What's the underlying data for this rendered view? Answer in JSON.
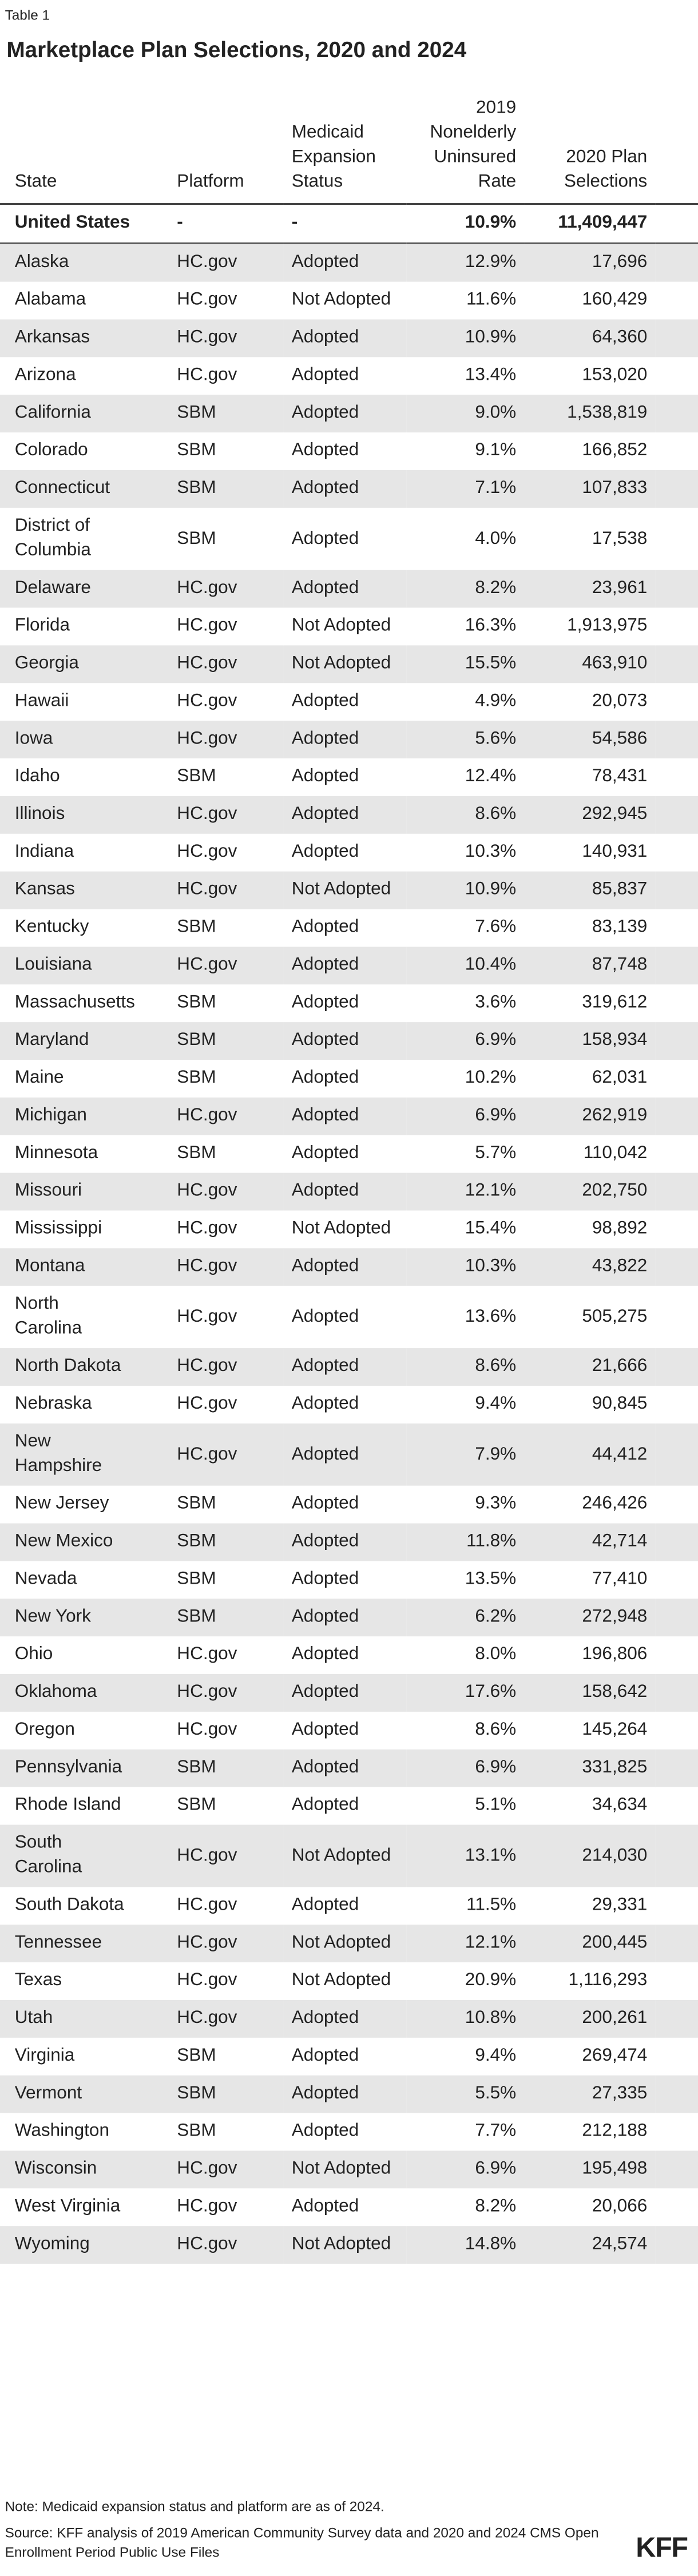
{
  "label": "Table 1",
  "title": "Marketplace Plan Selections, 2020 and 2024",
  "table": {
    "columns": [
      "State",
      "Platform",
      "Medicaid Expansion Status",
      "2019 Nonelderly Uninsured Rate",
      "2020 Plan Selections"
    ],
    "total": [
      "United States",
      "-",
      "-",
      "10.9%",
      "11,409,447"
    ],
    "rows": [
      [
        "Alaska",
        "HC.gov",
        "Adopted",
        "12.9%",
        "17,696"
      ],
      [
        "Alabama",
        "HC.gov",
        "Not Adopted",
        "11.6%",
        "160,429"
      ],
      [
        "Arkansas",
        "HC.gov",
        "Adopted",
        "10.9%",
        "64,360"
      ],
      [
        "Arizona",
        "HC.gov",
        "Adopted",
        "13.4%",
        "153,020"
      ],
      [
        "California",
        "SBM",
        "Adopted",
        "9.0%",
        "1,538,819"
      ],
      [
        "Colorado",
        "SBM",
        "Adopted",
        "9.1%",
        "166,852"
      ],
      [
        "Connecticut",
        "SBM",
        "Adopted",
        "7.1%",
        "107,833"
      ],
      [
        "District of Columbia",
        "SBM",
        "Adopted",
        "4.0%",
        "17,538"
      ],
      [
        "Delaware",
        "HC.gov",
        "Adopted",
        "8.2%",
        "23,961"
      ],
      [
        "Florida",
        "HC.gov",
        "Not Adopted",
        "16.3%",
        "1,913,975"
      ],
      [
        "Georgia",
        "HC.gov",
        "Not Adopted",
        "15.5%",
        "463,910"
      ],
      [
        "Hawaii",
        "HC.gov",
        "Adopted",
        "4.9%",
        "20,073"
      ],
      [
        "Iowa",
        "HC.gov",
        "Adopted",
        "5.6%",
        "54,586"
      ],
      [
        "Idaho",
        "SBM",
        "Adopted",
        "12.4%",
        "78,431"
      ],
      [
        "Illinois",
        "HC.gov",
        "Adopted",
        "8.6%",
        "292,945"
      ],
      [
        "Indiana",
        "HC.gov",
        "Adopted",
        "10.3%",
        "140,931"
      ],
      [
        "Kansas",
        "HC.gov",
        "Not Adopted",
        "10.9%",
        "85,837"
      ],
      [
        "Kentucky",
        "SBM",
        "Adopted",
        "7.6%",
        "83,139"
      ],
      [
        "Louisiana",
        "HC.gov",
        "Adopted",
        "10.4%",
        "87,748"
      ],
      [
        "Massachusetts",
        "SBM",
        "Adopted",
        "3.6%",
        "319,612"
      ],
      [
        "Maryland",
        "SBM",
        "Adopted",
        "6.9%",
        "158,934"
      ],
      [
        "Maine",
        "SBM",
        "Adopted",
        "10.2%",
        "62,031"
      ],
      [
        "Michigan",
        "HC.gov",
        "Adopted",
        "6.9%",
        "262,919"
      ],
      [
        "Minnesota",
        "SBM",
        "Adopted",
        "5.7%",
        "110,042"
      ],
      [
        "Missouri",
        "HC.gov",
        "Adopted",
        "12.1%",
        "202,750"
      ],
      [
        "Mississippi",
        "HC.gov",
        "Not Adopted",
        "15.4%",
        "98,892"
      ],
      [
        "Montana",
        "HC.gov",
        "Adopted",
        "10.3%",
        "43,822"
      ],
      [
        "North Carolina",
        "HC.gov",
        "Adopted",
        "13.6%",
        "505,275"
      ],
      [
        "North Dakota",
        "HC.gov",
        "Adopted",
        "8.6%",
        "21,666"
      ],
      [
        "Nebraska",
        "HC.gov",
        "Adopted",
        "9.4%",
        "90,845"
      ],
      [
        "New Hampshire",
        "HC.gov",
        "Adopted",
        "7.9%",
        "44,412"
      ],
      [
        "New Jersey",
        "SBM",
        "Adopted",
        "9.3%",
        "246,426"
      ],
      [
        "New Mexico",
        "SBM",
        "Adopted",
        "11.8%",
        "42,714"
      ],
      [
        "Nevada",
        "SBM",
        "Adopted",
        "13.5%",
        "77,410"
      ],
      [
        "New York",
        "SBM",
        "Adopted",
        "6.2%",
        "272,948"
      ],
      [
        "Ohio",
        "HC.gov",
        "Adopted",
        "8.0%",
        "196,806"
      ],
      [
        "Oklahoma",
        "HC.gov",
        "Adopted",
        "17.6%",
        "158,642"
      ],
      [
        "Oregon",
        "HC.gov",
        "Adopted",
        "8.6%",
        "145,264"
      ],
      [
        "Pennsylvania",
        "SBM",
        "Adopted",
        "6.9%",
        "331,825"
      ],
      [
        "Rhode Island",
        "SBM",
        "Adopted",
        "5.1%",
        "34,634"
      ],
      [
        "South Carolina",
        "HC.gov",
        "Not Adopted",
        "13.1%",
        "214,030"
      ],
      [
        "South Dakota",
        "HC.gov",
        "Adopted",
        "11.5%",
        "29,331"
      ],
      [
        "Tennessee",
        "HC.gov",
        "Not Adopted",
        "12.1%",
        "200,445"
      ],
      [
        "Texas",
        "HC.gov",
        "Not Adopted",
        "20.9%",
        "1,116,293"
      ],
      [
        "Utah",
        "HC.gov",
        "Adopted",
        "10.8%",
        "200,261"
      ],
      [
        "Virginia",
        "SBM",
        "Adopted",
        "9.4%",
        "269,474"
      ],
      [
        "Vermont",
        "SBM",
        "Adopted",
        "5.5%",
        "27,335"
      ],
      [
        "Washington",
        "SBM",
        "Adopted",
        "7.7%",
        "212,188"
      ],
      [
        "Wisconsin",
        "HC.gov",
        "Not Adopted",
        "6.9%",
        "195,498"
      ],
      [
        "West Virginia",
        "HC.gov",
        "Adopted",
        "8.2%",
        "20,066"
      ],
      [
        "Wyoming",
        "HC.gov",
        "Not Adopted",
        "14.8%",
        "24,574"
      ]
    ]
  },
  "footer": {
    "note": "Note: Medicaid expansion status and platform are as of 2024.",
    "source": "Source: KFF analysis of 2019 American Community Survey data and 2020 and 2024 CMS Open Enrollment Period Public Use Files",
    "logo": "KFF"
  }
}
